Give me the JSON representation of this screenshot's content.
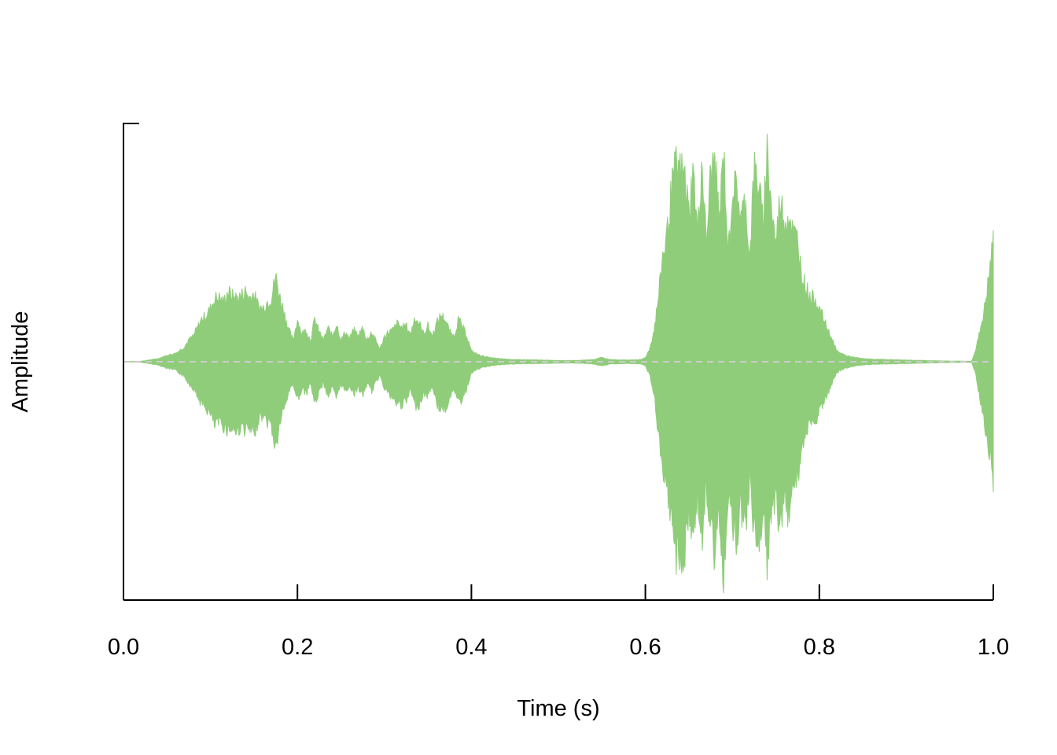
{
  "chart_data": {
    "type": "area",
    "title": "",
    "xlabel": "Time (s)",
    "ylabel": "Amplitude",
    "xlim": [
      0,
      1.0
    ],
    "ylim": [
      -1,
      1
    ],
    "grid": false,
    "legend": "none",
    "x_ticks": [
      "0.0",
      "0.2",
      "0.4",
      "0.6",
      "0.8",
      "1.0"
    ],
    "x_tick_values": [
      0,
      0.2,
      0.4,
      0.6,
      0.8,
      1.0
    ],
    "series": [
      {
        "color": "#90CD7B",
        "x": [
          0.0,
          0.02,
          0.04,
          0.05,
          0.06,
          0.07,
          0.075,
          0.08,
          0.085,
          0.09,
          0.095,
          0.1,
          0.105,
          0.11,
          0.115,
          0.12,
          0.125,
          0.13,
          0.135,
          0.14,
          0.145,
          0.15,
          0.155,
          0.16,
          0.165,
          0.17,
          0.175,
          0.18,
          0.185,
          0.19,
          0.195,
          0.2,
          0.205,
          0.21,
          0.215,
          0.22,
          0.225,
          0.23,
          0.235,
          0.24,
          0.245,
          0.25,
          0.255,
          0.26,
          0.265,
          0.27,
          0.275,
          0.28,
          0.285,
          0.29,
          0.295,
          0.3,
          0.305,
          0.31,
          0.315,
          0.32,
          0.325,
          0.33,
          0.335,
          0.34,
          0.345,
          0.35,
          0.355,
          0.36,
          0.365,
          0.37,
          0.375,
          0.38,
          0.385,
          0.39,
          0.395,
          0.4,
          0.41,
          0.42,
          0.43,
          0.45,
          0.48,
          0.5,
          0.52,
          0.54,
          0.55,
          0.56,
          0.58,
          0.595,
          0.6,
          0.605,
          0.61,
          0.615,
          0.62,
          0.625,
          0.63,
          0.635,
          0.64,
          0.645,
          0.65,
          0.655,
          0.66,
          0.665,
          0.67,
          0.675,
          0.68,
          0.685,
          0.69,
          0.695,
          0.7,
          0.705,
          0.71,
          0.715,
          0.72,
          0.725,
          0.73,
          0.735,
          0.74,
          0.745,
          0.75,
          0.755,
          0.76,
          0.765,
          0.77,
          0.775,
          0.78,
          0.785,
          0.79,
          0.795,
          0.8,
          0.805,
          0.81,
          0.815,
          0.82,
          0.83,
          0.84,
          0.85,
          0.86,
          0.88,
          0.9,
          0.92,
          0.94,
          0.96,
          0.975,
          0.98,
          0.985,
          0.99,
          0.995,
          1.0
        ],
        "upper": [
          0.0,
          0.002,
          0.015,
          0.03,
          0.04,
          0.07,
          0.1,
          0.12,
          0.16,
          0.2,
          0.22,
          0.25,
          0.3,
          0.3,
          0.28,
          0.33,
          0.31,
          0.3,
          0.31,
          0.33,
          0.3,
          0.32,
          0.26,
          0.25,
          0.28,
          0.3,
          0.4,
          0.3,
          0.23,
          0.15,
          0.1,
          0.2,
          0.13,
          0.15,
          0.1,
          0.2,
          0.14,
          0.1,
          0.16,
          0.12,
          0.18,
          0.1,
          0.14,
          0.11,
          0.15,
          0.12,
          0.16,
          0.1,
          0.14,
          0.1,
          0.06,
          0.12,
          0.14,
          0.15,
          0.18,
          0.16,
          0.17,
          0.13,
          0.21,
          0.18,
          0.13,
          0.17,
          0.12,
          0.18,
          0.22,
          0.2,
          0.14,
          0.12,
          0.2,
          0.16,
          0.12,
          0.05,
          0.03,
          0.02,
          0.015,
          0.01,
          0.008,
          0.006,
          0.006,
          0.01,
          0.02,
          0.01,
          0.008,
          0.01,
          0.02,
          0.06,
          0.15,
          0.3,
          0.5,
          0.6,
          0.8,
          0.92,
          0.9,
          0.88,
          0.7,
          0.9,
          0.6,
          0.95,
          0.55,
          0.88,
          0.95,
          0.65,
          1.0,
          0.5,
          0.8,
          0.82,
          0.68,
          0.75,
          0.5,
          0.9,
          0.85,
          0.65,
          1.0,
          0.72,
          0.55,
          0.78,
          0.65,
          0.7,
          0.6,
          0.58,
          0.4,
          0.35,
          0.3,
          0.3,
          0.25,
          0.2,
          0.15,
          0.1,
          0.05,
          0.03,
          0.02,
          0.015,
          0.012,
          0.01,
          0.008,
          0.006,
          0.004,
          0.003,
          0.002,
          0.06,
          0.15,
          0.25,
          0.4,
          0.57
        ],
        "lower": [
          0.0,
          -0.002,
          -0.015,
          -0.03,
          -0.04,
          -0.07,
          -0.1,
          -0.12,
          -0.16,
          -0.2,
          -0.22,
          -0.25,
          -0.3,
          -0.28,
          -0.3,
          -0.32,
          -0.31,
          -0.33,
          -0.3,
          -0.32,
          -0.32,
          -0.35,
          -0.27,
          -0.25,
          -0.28,
          -0.3,
          -0.42,
          -0.28,
          -0.22,
          -0.14,
          -0.1,
          -0.18,
          -0.13,
          -0.15,
          -0.1,
          -0.2,
          -0.14,
          -0.1,
          -0.16,
          -0.12,
          -0.18,
          -0.1,
          -0.14,
          -0.11,
          -0.15,
          -0.12,
          -0.16,
          -0.1,
          -0.14,
          -0.1,
          -0.06,
          -0.12,
          -0.15,
          -0.18,
          -0.2,
          -0.2,
          -0.19,
          -0.13,
          -0.21,
          -0.2,
          -0.15,
          -0.16,
          -0.11,
          -0.2,
          -0.22,
          -0.22,
          -0.17,
          -0.12,
          -0.2,
          -0.17,
          -0.12,
          -0.05,
          -0.03,
          -0.02,
          -0.015,
          -0.01,
          -0.008,
          -0.006,
          -0.006,
          -0.01,
          -0.02,
          -0.01,
          -0.008,
          -0.01,
          -0.02,
          -0.06,
          -0.15,
          -0.35,
          -0.55,
          -0.62,
          -0.75,
          -0.9,
          -0.9,
          -0.94,
          -0.7,
          -0.85,
          -0.6,
          -0.88,
          -0.6,
          -0.8,
          -0.92,
          -0.7,
          -1.0,
          -0.6,
          -0.75,
          -0.82,
          -0.68,
          -0.78,
          -0.55,
          -0.8,
          -0.85,
          -0.7,
          -0.98,
          -0.72,
          -0.6,
          -0.82,
          -0.65,
          -0.72,
          -0.55,
          -0.55,
          -0.4,
          -0.35,
          -0.28,
          -0.3,
          -0.22,
          -0.2,
          -0.15,
          -0.1,
          -0.05,
          -0.03,
          -0.02,
          -0.015,
          -0.012,
          -0.01,
          -0.008,
          -0.006,
          -0.004,
          -0.003,
          -0.002,
          -0.06,
          -0.18,
          -0.3,
          -0.42,
          -0.55
        ]
      }
    ]
  }
}
